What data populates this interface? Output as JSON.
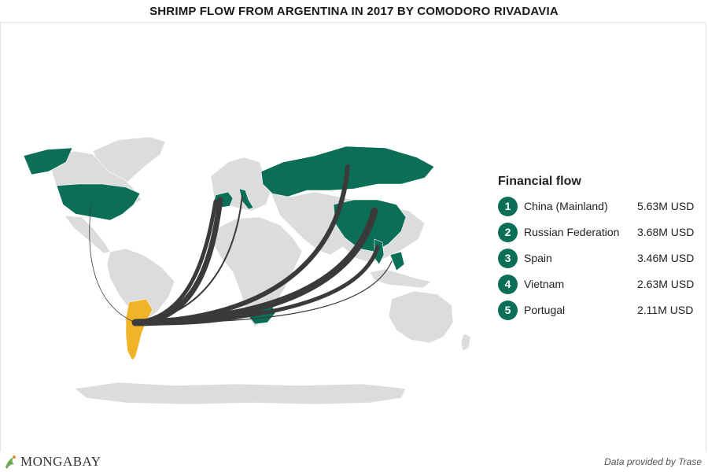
{
  "title": "SHRIMP FLOW FROM ARGENTINA IN 2017 BY COMODORO RIVADAVIA",
  "legend": {
    "title": "Financial flow",
    "items": [
      {
        "rank": "1",
        "label": "China (Mainland)",
        "value": "5.63M USD"
      },
      {
        "rank": "2",
        "label": "Russian Federation",
        "value": "3.68M USD"
      },
      {
        "rank": "3",
        "label": "Spain",
        "value": "3.46M USD"
      },
      {
        "rank": "4",
        "label": "Vietnam",
        "value": "2.63M USD"
      },
      {
        "rank": "5",
        "label": "Portugal",
        "value": "2.11M USD"
      }
    ]
  },
  "brand": {
    "name": "MONGABAY",
    "icon": "frog-logo-icon"
  },
  "credit": "Data provided by Trase",
  "colors": {
    "land": "#dcdcdc",
    "destination": "#0b6e56",
    "origin": "#f0b429",
    "flow": "#3a3a3a"
  }
}
